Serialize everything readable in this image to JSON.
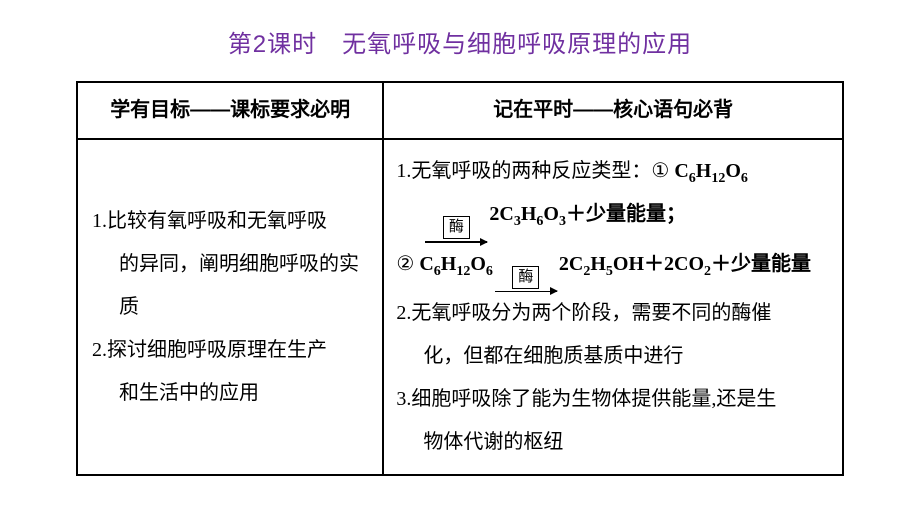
{
  "title": "第2课时　无氧呼吸与细胞呼吸原理的应用",
  "table": {
    "header_left": "学有目标——课标要求必明",
    "header_right": "记在平时——核心语句必背",
    "left": {
      "item1_a": "1.比较有氧呼吸和无氧呼吸",
      "item1_b": "的异同，阐明细胞呼吸的实",
      "item1_c": "质",
      "item2_a": "2.探讨细胞呼吸原理在生产",
      "item2_b": "和生活中的应用"
    },
    "right": {
      "r1_lead": "1.无氧呼吸的两种反应类型：",
      "r1_circ1": "①",
      "formula_glucose_a": "C",
      "formula_glucose_b": "H",
      "formula_glucose_c": "O",
      "n6": "6",
      "n12": "12",
      "enzyme_label": "酶",
      "lactic_a": "2C",
      "lactic_b": "H",
      "lactic_c": "O",
      "n3": "3",
      "r1_tail1": "＋少量能量；",
      "r1_circ2": "②",
      "eth_a": "2C",
      "eth_b": "H",
      "eth_c": "OH",
      "n2": "2",
      "n5": "5",
      "plus": "＋",
      "co2_a": "2CO",
      "r1_tail2": "＋少量能量",
      "r2_a": "2.无氧呼吸分为两个阶段，需要不同的酶催",
      "r2_b": "化，但都在细胞质基质中进行",
      "r3_a": "3.细胞呼吸除了能为生物体提供能量,还是生",
      "r3_b": "物体代谢的枢纽"
    }
  }
}
